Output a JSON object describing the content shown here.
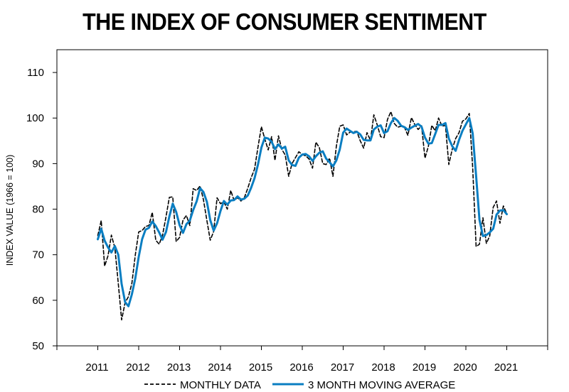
{
  "chart_data": {
    "type": "line",
    "title": "THE INDEX OF CONSUMER SENTIMENT",
    "ylabel": "INDEX VALUE (1966 = 100)",
    "xlabel": "",
    "ylim": [
      50,
      115
    ],
    "yticks": [
      50,
      60,
      70,
      80,
      90,
      100,
      110
    ],
    "xlim": [
      2010,
      2022
    ],
    "xticks": [
      2011,
      2012,
      2013,
      2014,
      2015,
      2016,
      2017,
      2018,
      2019,
      2020,
      2021
    ],
    "grid": false,
    "legend_position": "bottom",
    "colors": {
      "monthly": "#000000",
      "moving_average": "#0a7ec2",
      "axis": "#000000"
    },
    "series": [
      {
        "name": "MONTHLY DATA",
        "style": "dashed",
        "x": [
          2011.0,
          2011.083,
          2011.167,
          2011.25,
          2011.333,
          2011.417,
          2011.5,
          2011.583,
          2011.667,
          2011.75,
          2011.833,
          2011.917,
          2012.0,
          2012.083,
          2012.167,
          2012.25,
          2012.333,
          2012.417,
          2012.5,
          2012.583,
          2012.667,
          2012.75,
          2012.833,
          2012.917,
          2013.0,
          2013.083,
          2013.167,
          2013.25,
          2013.333,
          2013.417,
          2013.5,
          2013.583,
          2013.667,
          2013.75,
          2013.833,
          2013.917,
          2014.0,
          2014.083,
          2014.167,
          2014.25,
          2014.333,
          2014.417,
          2014.5,
          2014.583,
          2014.667,
          2014.75,
          2014.833,
          2014.917,
          2015.0,
          2015.083,
          2015.167,
          2015.25,
          2015.333,
          2015.417,
          2015.5,
          2015.583,
          2015.667,
          2015.75,
          2015.833,
          2015.917,
          2016.0,
          2016.083,
          2016.167,
          2016.25,
          2016.333,
          2016.417,
          2016.5,
          2016.583,
          2016.667,
          2016.75,
          2016.833,
          2016.917,
          2017.0,
          2017.083,
          2017.167,
          2017.25,
          2017.333,
          2017.417,
          2017.5,
          2017.583,
          2017.667,
          2017.75,
          2017.833,
          2017.917,
          2018.0,
          2018.083,
          2018.167,
          2018.25,
          2018.333,
          2018.417,
          2018.5,
          2018.583,
          2018.667,
          2018.75,
          2018.833,
          2018.917,
          2019.0,
          2019.083,
          2019.167,
          2019.25,
          2019.333,
          2019.417,
          2019.5,
          2019.583,
          2019.667,
          2019.75,
          2019.833,
          2019.917,
          2020.0,
          2020.083,
          2020.167,
          2020.25,
          2020.333,
          2020.417,
          2020.5,
          2020.583,
          2020.667,
          2020.75,
          2020.833,
          2020.917,
          2021.0
        ],
        "values": [
          74.2,
          77.5,
          67.5,
          69.8,
          74.3,
          71.5,
          63.7,
          55.7,
          59.5,
          60.8,
          63.7,
          69.9,
          75.0,
          75.3,
          76.2,
          76.4,
          79.3,
          73.2,
          72.3,
          74.3,
          78.3,
          82.6,
          82.7,
          72.9,
          73.8,
          77.6,
          78.6,
          76.4,
          84.5,
          84.1,
          85.1,
          82.1,
          77.5,
          73.2,
          75.1,
          82.5,
          81.2,
          81.6,
          80.0,
          84.1,
          81.9,
          82.5,
          81.8,
          82.5,
          84.6,
          86.9,
          88.8,
          93.6,
          98.1,
          95.4,
          93.0,
          95.9,
          90.7,
          96.1,
          93.1,
          91.9,
          87.2,
          90.0,
          91.3,
          92.6,
          92.0,
          91.7,
          91.0,
          89.0,
          94.7,
          93.5,
          90.0,
          89.8,
          91.2,
          87.2,
          93.8,
          98.2,
          98.5,
          96.3,
          96.9,
          97.0,
          97.1,
          95.0,
          93.4,
          96.8,
          95.1,
          100.7,
          98.5,
          95.9,
          95.7,
          99.7,
          101.4,
          98.8,
          98.0,
          98.2,
          97.9,
          96.2,
          100.1,
          98.6,
          97.5,
          98.3,
          91.2,
          93.8,
          98.4,
          97.2,
          100.0,
          98.2,
          98.4,
          89.8,
          93.2,
          95.5,
          96.8,
          99.3,
          99.8,
          101.0,
          89.1,
          71.8,
          72.3,
          78.1,
          72.5,
          74.1,
          80.4,
          81.8,
          76.9,
          80.7,
          79.0
        ]
      },
      {
        "name": "3 MONTH MOVING AVERAGE",
        "style": "solid",
        "x": [
          2011.0,
          2011.083,
          2011.167,
          2011.25,
          2011.333,
          2011.417,
          2011.5,
          2011.583,
          2011.667,
          2011.75,
          2011.833,
          2011.917,
          2012.0,
          2012.083,
          2012.167,
          2012.25,
          2012.333,
          2012.417,
          2012.5,
          2012.583,
          2012.667,
          2012.75,
          2012.833,
          2012.917,
          2013.0,
          2013.083,
          2013.167,
          2013.25,
          2013.333,
          2013.417,
          2013.5,
          2013.583,
          2013.667,
          2013.75,
          2013.833,
          2013.917,
          2014.0,
          2014.083,
          2014.167,
          2014.25,
          2014.333,
          2014.417,
          2014.5,
          2014.583,
          2014.667,
          2014.75,
          2014.833,
          2014.917,
          2015.0,
          2015.083,
          2015.167,
          2015.25,
          2015.333,
          2015.417,
          2015.5,
          2015.583,
          2015.667,
          2015.75,
          2015.833,
          2015.917,
          2016.0,
          2016.083,
          2016.167,
          2016.25,
          2016.333,
          2016.417,
          2016.5,
          2016.583,
          2016.667,
          2016.75,
          2016.833,
          2016.917,
          2017.0,
          2017.083,
          2017.167,
          2017.25,
          2017.333,
          2017.417,
          2017.5,
          2017.583,
          2017.667,
          2017.75,
          2017.833,
          2017.917,
          2018.0,
          2018.083,
          2018.167,
          2018.25,
          2018.333,
          2018.417,
          2018.5,
          2018.583,
          2018.667,
          2018.75,
          2018.833,
          2018.917,
          2019.0,
          2019.083,
          2019.167,
          2019.25,
          2019.333,
          2019.417,
          2019.5,
          2019.583,
          2019.667,
          2019.75,
          2019.833,
          2019.917,
          2020.0,
          2020.083,
          2020.167,
          2020.25,
          2020.333,
          2020.417,
          2020.5,
          2020.583,
          2020.667,
          2020.75,
          2020.833,
          2020.917,
          2021.0
        ],
        "values": [
          73.4,
          75.7,
          73.1,
          71.6,
          70.5,
          71.9,
          70.0,
          63.6,
          59.6,
          58.7,
          61.3,
          64.8,
          69.5,
          73.4,
          75.5,
          75.9,
          77.3,
          76.3,
          74.9,
          73.3,
          75.0,
          78.4,
          81.2,
          79.4,
          76.5,
          74.8,
          76.7,
          77.5,
          79.8,
          81.7,
          84.6,
          83.8,
          81.6,
          77.6,
          75.3,
          76.9,
          79.6,
          81.8,
          81.0,
          81.9,
          82.0,
          82.8,
          82.1,
          82.3,
          83.0,
          84.7,
          86.8,
          89.8,
          93.5,
          95.7,
          95.5,
          94.8,
          93.2,
          94.2,
          93.3,
          93.7,
          90.7,
          89.7,
          89.5,
          91.3,
          92.0,
          92.1,
          91.6,
          90.6,
          91.6,
          92.4,
          92.7,
          91.1,
          90.3,
          89.4,
          90.7,
          93.1,
          96.8,
          97.7,
          97.2,
          96.7,
          97.0,
          96.4,
          95.2,
          95.1,
          95.1,
          97.5,
          98.1,
          98.4,
          96.7,
          97.1,
          98.9,
          100.0,
          99.4,
          98.3,
          98.0,
          97.4,
          97.9,
          98.3,
          98.7,
          98.1,
          95.7,
          94.4,
          94.5,
          96.5,
          98.5,
          98.5,
          98.9,
          95.5,
          93.8,
          92.8,
          95.2,
          97.2,
          98.6,
          100.0,
          96.6,
          87.3,
          77.7,
          74.1,
          74.3,
          74.9,
          75.7,
          78.8,
          79.7,
          79.8,
          78.9
        ]
      }
    ]
  }
}
